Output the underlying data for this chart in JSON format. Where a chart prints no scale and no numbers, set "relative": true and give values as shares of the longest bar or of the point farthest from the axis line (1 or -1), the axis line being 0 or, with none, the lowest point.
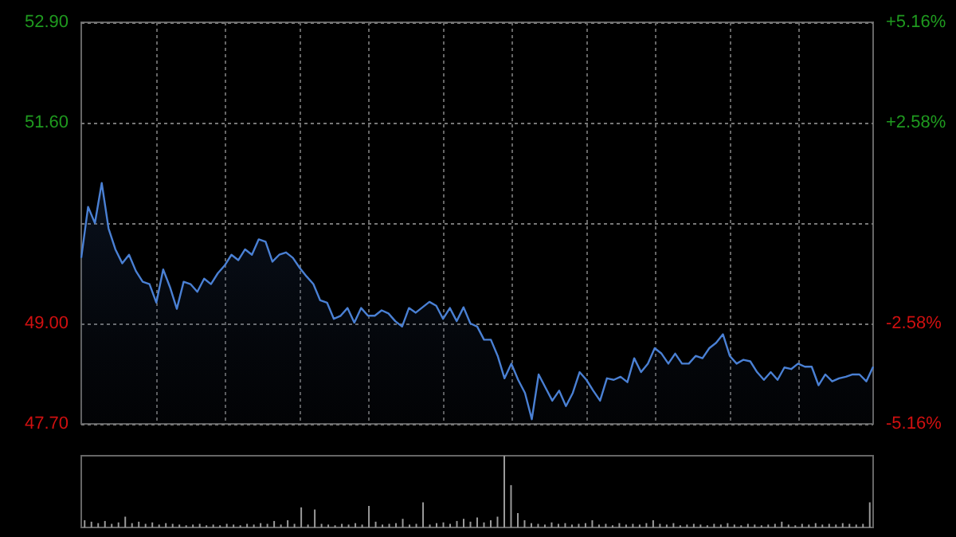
{
  "chart_data": [
    {
      "type": "area",
      "categories": [
        null,
        null,
        null,
        null,
        null,
        null,
        null,
        null,
        null,
        null,
        null,
        null,
        null,
        null,
        null,
        null,
        null,
        null,
        null,
        null,
        null,
        null,
        null,
        null,
        null,
        null,
        null,
        null,
        null,
        null,
        null,
        null,
        null,
        null,
        null,
        null,
        null,
        null,
        null,
        null,
        null,
        null,
        null,
        null,
        null,
        null,
        null,
        null,
        null,
        null,
        null,
        null,
        null,
        null,
        null,
        null,
        null,
        null,
        null,
        null,
        null,
        null,
        null,
        null,
        null,
        null,
        null,
        null,
        null,
        null,
        null,
        null,
        null,
        null,
        null,
        null,
        null,
        null,
        null,
        null,
        null,
        null,
        null,
        null,
        null,
        null,
        null,
        null,
        null,
        null,
        null,
        null,
        null,
        null,
        null,
        null,
        null,
        null,
        null,
        null,
        null,
        null,
        null,
        null,
        null,
        null,
        null,
        null,
        null,
        null,
        null,
        null,
        null,
        null,
        null,
        null,
        null
      ],
      "series": [
        {
          "color": "#4a80d4",
          "values": [
            49.85,
            50.51,
            50.3,
            50.82,
            50.23,
            49.96,
            49.78,
            49.89,
            49.68,
            49.54,
            49.51,
            49.27,
            49.7,
            49.47,
            49.19,
            49.54,
            49.51,
            49.41,
            49.58,
            49.51,
            49.65,
            49.75,
            49.89,
            49.82,
            49.96,
            49.89,
            50.09,
            50.06,
            49.8,
            49.89,
            49.92,
            49.85,
            49.72,
            49.61,
            49.51,
            49.3,
            49.27,
            49.06,
            49.1,
            49.2,
            49.01,
            49.2,
            49.1,
            49.1,
            49.17,
            49.13,
            49.03,
            48.96,
            49.2,
            49.14,
            49.21,
            49.28,
            49.23,
            49.06,
            49.2,
            49.03,
            49.21,
            49.0,
            48.96,
            48.79,
            48.79,
            48.58,
            48.29,
            48.48,
            48.27,
            48.1,
            47.76,
            48.34,
            48.17,
            48.0,
            48.13,
            47.93,
            48.1,
            48.37,
            48.27,
            48.13,
            48.0,
            48.29,
            48.27,
            48.31,
            48.24,
            48.55,
            48.37,
            48.48,
            48.68,
            48.61,
            48.48,
            48.61,
            48.48,
            48.48,
            48.58,
            48.55,
            48.68,
            48.75,
            48.86,
            48.58,
            48.48,
            48.53,
            48.51,
            48.37,
            48.27,
            48.37,
            48.27,
            48.43,
            48.41,
            48.48,
            48.44,
            48.44,
            48.2,
            48.34,
            48.25,
            48.29,
            48.31,
            48.34,
            48.34,
            48.25,
            48.44
          ]
        }
      ],
      "ylim": [
        47.7,
        52.9
      ],
      "yticks": [
        {
          "value": 47.7,
          "label": "47.70"
        },
        {
          "value": 49.0,
          "label": "49.00"
        },
        {
          "value": 50.3,
          "label": null
        },
        {
          "value": 51.6,
          "label": "51.60"
        },
        {
          "value": 52.9,
          "label": "52.90"
        }
      ],
      "y2lim": [
        -5.16,
        5.16
      ],
      "y2ticks": [
        {
          "value": -5.16,
          "label": "-5.16%"
        },
        {
          "value": -2.58,
          "label": "-2.58%"
        },
        {
          "value": 0,
          "label": null
        },
        {
          "value": 2.58,
          "label": "+2.58%"
        },
        {
          "value": 5.16,
          "label": "+5.16%"
        }
      ],
      "grid": true,
      "tick_labels": "y"
    },
    {
      "type": "bar",
      "relative": true,
      "categories": [
        null,
        null,
        null,
        null,
        null,
        null,
        null,
        null,
        null,
        null,
        null,
        null,
        null,
        null,
        null,
        null,
        null,
        null,
        null,
        null,
        null,
        null,
        null,
        null,
        null,
        null,
        null,
        null,
        null,
        null,
        null,
        null,
        null,
        null,
        null,
        null,
        null,
        null,
        null,
        null,
        null,
        null,
        null,
        null,
        null,
        null,
        null,
        null,
        null,
        null,
        null,
        null,
        null,
        null,
        null,
        null,
        null,
        null,
        null,
        null,
        null,
        null,
        null,
        null,
        null,
        null,
        null,
        null,
        null,
        null,
        null,
        null,
        null,
        null,
        null,
        null,
        null,
        null,
        null,
        null,
        null,
        null,
        null,
        null,
        null,
        null,
        null,
        null,
        null,
        null,
        null,
        null,
        null,
        null,
        null,
        null,
        null,
        null,
        null,
        null,
        null,
        null,
        null,
        null,
        null,
        null,
        null,
        null,
        null,
        null,
        null,
        null,
        null,
        null,
        null,
        null,
        null
      ],
      "values": [
        0.1,
        0.08,
        0.06,
        0.09,
        0.05,
        0.07,
        0.15,
        0.06,
        0.08,
        0.05,
        0.07,
        0.04,
        0.06,
        0.05,
        0.04,
        0.03,
        0.04,
        0.05,
        0.03,
        0.04,
        0.03,
        0.05,
        0.04,
        0.03,
        0.05,
        0.04,
        0.06,
        0.05,
        0.09,
        0.04,
        0.1,
        0.05,
        0.28,
        0.04,
        0.25,
        0.05,
        0.04,
        0.03,
        0.05,
        0.04,
        0.06,
        0.04,
        0.3,
        0.08,
        0.04,
        0.05,
        0.06,
        0.12,
        0.04,
        0.05,
        0.35,
        0.04,
        0.06,
        0.07,
        0.05,
        0.09,
        0.12,
        0.08,
        0.14,
        0.07,
        0.1,
        0.15,
        1.0,
        0.59,
        0.2,
        0.1,
        0.06,
        0.05,
        0.04,
        0.07,
        0.05,
        0.06,
        0.04,
        0.05,
        0.06,
        0.1,
        0.04,
        0.05,
        0.03,
        0.06,
        0.04,
        0.05,
        0.04,
        0.06,
        0.1,
        0.05,
        0.04,
        0.06,
        0.03,
        0.04,
        0.05,
        0.04,
        0.03,
        0.05,
        0.04,
        0.06,
        0.04,
        0.03,
        0.05,
        0.04,
        0.03,
        0.04,
        0.05,
        0.08,
        0.04,
        0.03,
        0.05,
        0.04,
        0.06,
        0.04,
        0.05,
        0.04,
        0.06,
        0.05,
        0.04,
        0.05,
        0.35
      ],
      "color": "#9a9a9a",
      "tick_labels": false
    }
  ]
}
